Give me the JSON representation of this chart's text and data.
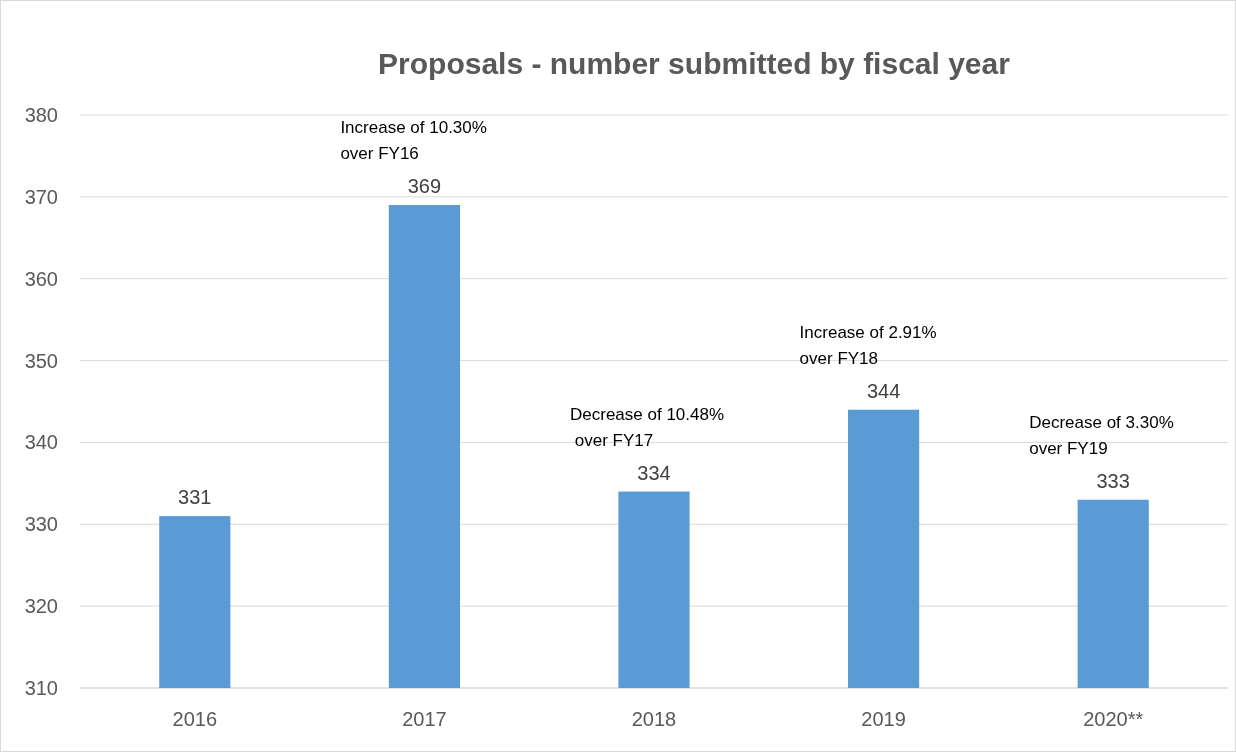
{
  "chart_data": {
    "type": "bar",
    "title": "Proposals - number submitted by fiscal year",
    "categories": [
      "2016",
      "2017",
      "2018",
      "2019",
      "2020**"
    ],
    "values": [
      331,
      369,
      334,
      344,
      333
    ],
    "color": "#5b9bd5",
    "ylim": [
      310,
      380
    ],
    "yticks": [
      310,
      320,
      330,
      340,
      350,
      360,
      370,
      380
    ],
    "grid": "y",
    "data_labels": true,
    "annotations": [
      {
        "text": "Increase of 10.30%\nover FY16",
        "x": "2017",
        "y": 369
      },
      {
        "text": "Decrease of 10.48%\n over FY17",
        "x": "2018",
        "y": 334
      },
      {
        "text": "Increase of 2.91%\nover FY18",
        "x": "2019",
        "y": 344
      },
      {
        "text": "Decrease of 3.30%\nover FY19",
        "x": "2020**",
        "y": 333
      }
    ]
  }
}
